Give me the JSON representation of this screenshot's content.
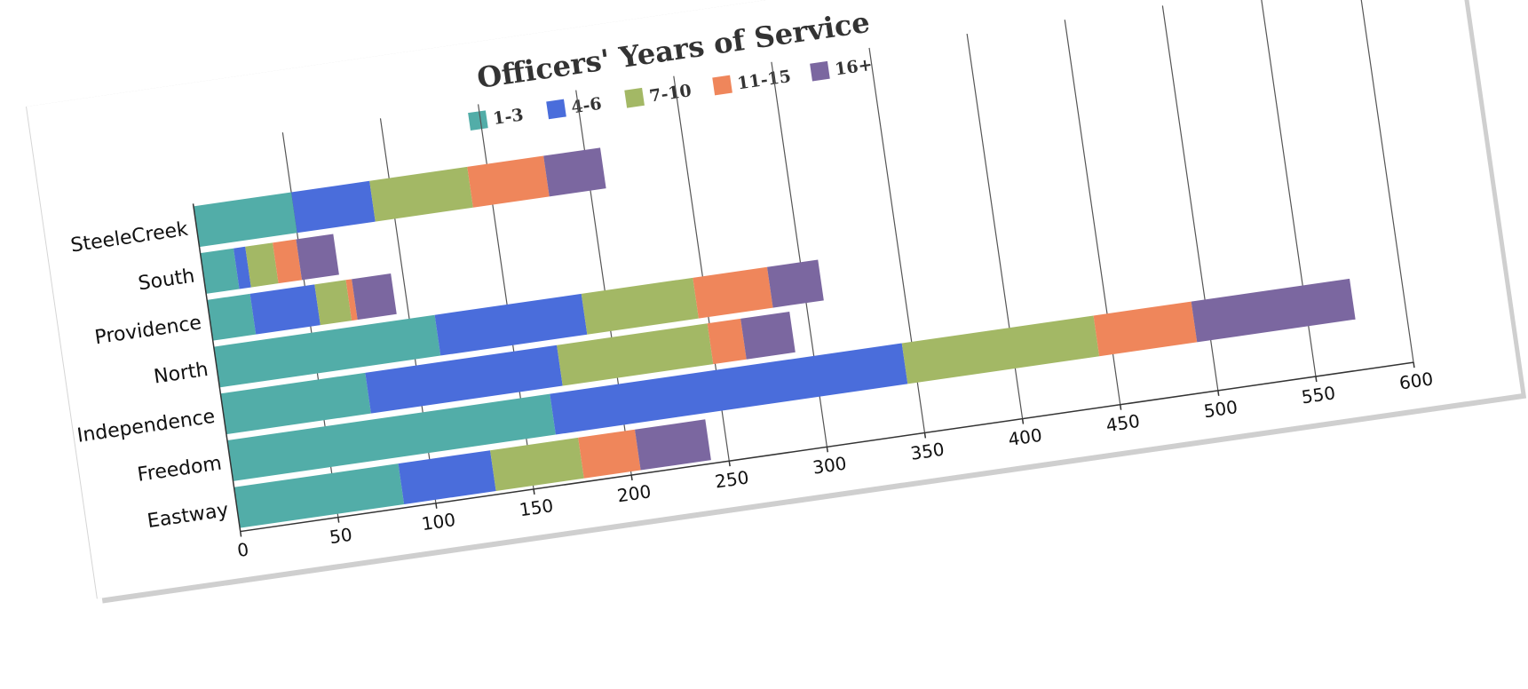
{
  "chart_data": {
    "type": "bar",
    "orientation": "horizontal",
    "stacked": true,
    "title": "Officers' Years of Service",
    "xlabel": "",
    "ylabel": "",
    "xlim": [
      0,
      600
    ],
    "x_ticks": [
      0,
      50,
      100,
      150,
      200,
      250,
      300,
      350,
      400,
      450,
      500,
      550,
      600
    ],
    "grid": true,
    "legend_position": "top",
    "categories": [
      "SteeleCreek",
      "South",
      "Providence",
      "North",
      "Independence",
      "Freedom",
      "Eastway"
    ],
    "series": [
      {
        "name": "1-3",
        "color": "#52ada8",
        "values": [
          50,
          17,
          22,
          113,
          74,
          165,
          84
        ]
      },
      {
        "name": "4-6",
        "color": "#4a6ddb",
        "values": [
          40,
          6,
          33,
          75,
          98,
          180,
          47
        ]
      },
      {
        "name": "7-10",
        "color": "#a3b865",
        "values": [
          50,
          14,
          16,
          57,
          77,
          98,
          45
        ]
      },
      {
        "name": "11-15",
        "color": "#ef865b",
        "values": [
          39,
          12,
          3,
          38,
          17,
          50,
          29
        ]
      },
      {
        "name": "16+",
        "color": "#7b67a0",
        "values": [
          29,
          19,
          20,
          26,
          25,
          81,
          36
        ]
      }
    ]
  }
}
